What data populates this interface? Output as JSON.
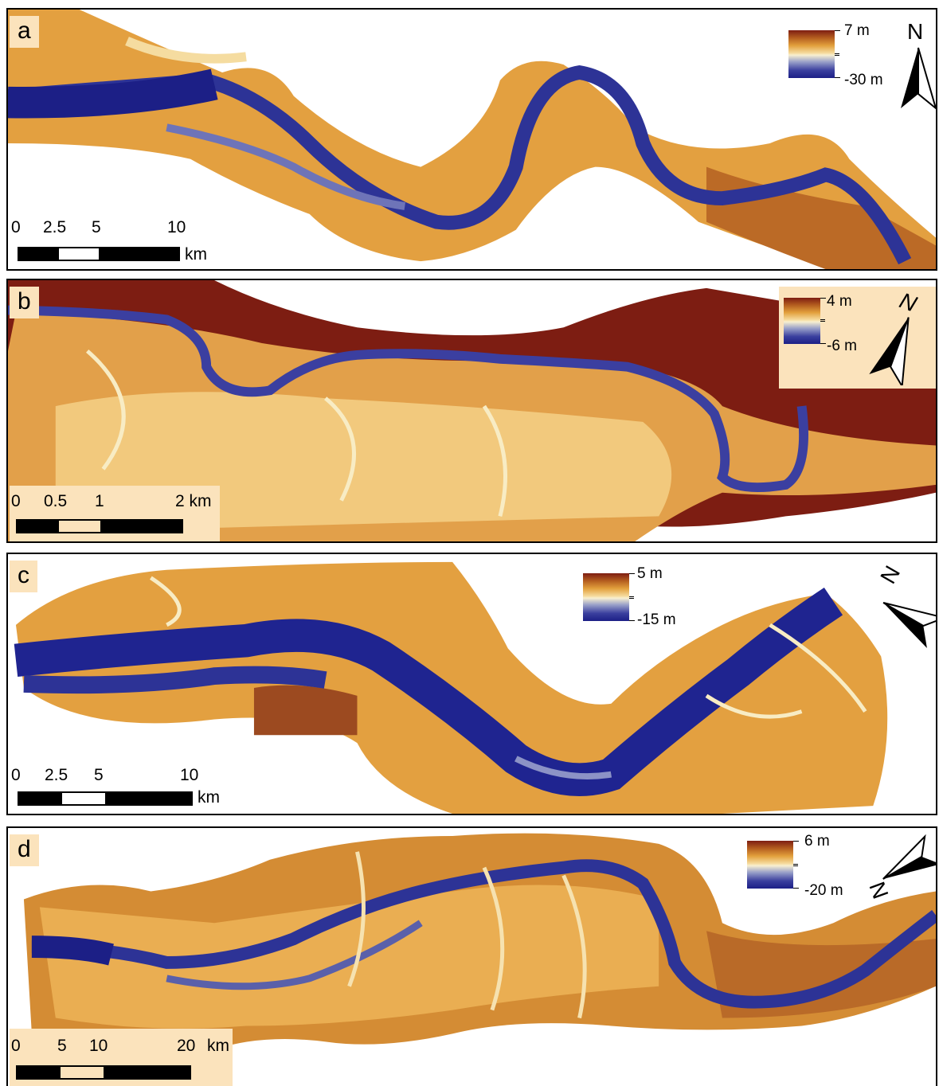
{
  "colors": {
    "deep": "#1c1f86",
    "mid_blue": "#3a3f9e",
    "light": "#f8f0d0",
    "sand": "#e7a443",
    "orange": "#c97a25",
    "high": "#7d1d12",
    "label_bg": "#fbe3bc"
  },
  "panels": [
    {
      "label": "a",
      "legend": {
        "max": "7 m",
        "min": "-30 m"
      },
      "north": "N",
      "scale": {
        "ticks": [
          "0",
          "2.5",
          "5",
          "10"
        ],
        "unit": "km"
      }
    },
    {
      "label": "b",
      "legend": {
        "max": "4 m",
        "min": "-6 m"
      },
      "north": "N",
      "scale": {
        "ticks": [
          "0",
          "0.5",
          "1",
          "2 km"
        ],
        "unit": ""
      }
    },
    {
      "label": "c",
      "legend": {
        "max": "5 m",
        "min": "-15 m"
      },
      "north": "N",
      "scale": {
        "ticks": [
          "0",
          "2.5",
          "5",
          "10"
        ],
        "unit": "km"
      }
    },
    {
      "label": "d",
      "legend": {
        "max": "6 m",
        "min": "-20 m"
      },
      "north": "N",
      "scale": {
        "ticks": [
          "0",
          "5",
          "10",
          "20"
        ],
        "unit": "km"
      }
    }
  ]
}
